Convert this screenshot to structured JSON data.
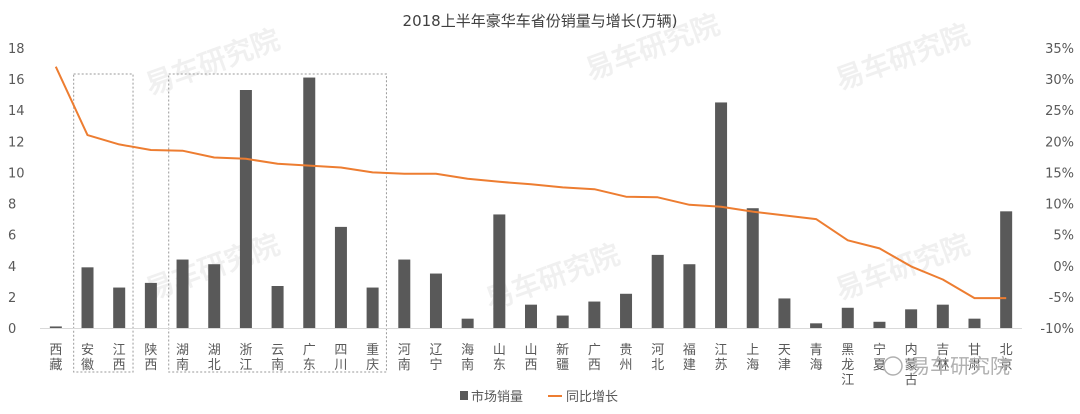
{
  "chart_data": {
    "type": "bar+line",
    "title": "2018上半年豪华车省份销量与增长(万辆)",
    "categories": [
      "西藏",
      "安徽",
      "江西",
      "陕西",
      "湖南",
      "湖北",
      "浙江",
      "云南",
      "广东",
      "四川",
      "重庆",
      "河南",
      "辽宁",
      "海南",
      "山东",
      "山西",
      "新疆",
      "广西",
      "贵州",
      "河北",
      "福建",
      "江苏",
      "上海",
      "天津",
      "青海",
      "黑龙江",
      "宁夏",
      "内蒙古",
      "吉林",
      "甘肃",
      "北京"
    ],
    "series": [
      {
        "name": "市场销量",
        "type": "bar",
        "axis": "left",
        "values": [
          0.1,
          3.9,
          2.6,
          2.9,
          4.4,
          4.1,
          15.3,
          2.7,
          16.1,
          6.5,
          2.6,
          4.4,
          3.5,
          0.6,
          7.3,
          1.5,
          0.8,
          1.7,
          2.2,
          4.7,
          4.1,
          14.5,
          7.7,
          1.9,
          0.3,
          1.3,
          0.4,
          1.2,
          1.5,
          0.6,
          7.5
        ]
      },
      {
        "name": "同比增长",
        "type": "line",
        "axis": "right",
        "values": [
          32.0,
          21.0,
          19.5,
          18.6,
          18.5,
          17.4,
          17.2,
          16.4,
          16.1,
          15.8,
          15.0,
          14.8,
          14.8,
          14.0,
          13.5,
          13.1,
          12.6,
          12.3,
          11.1,
          11.0,
          9.8,
          9.5,
          8.7,
          8.1,
          7.5,
          4.1,
          2.8,
          -0.1,
          -2.2,
          -5.2,
          -5.2
        ]
      }
    ],
    "y_left": {
      "min": 0,
      "max": 18,
      "step": 2,
      "ticks": [
        "0",
        "2",
        "4",
        "6",
        "8",
        "10",
        "12",
        "14",
        "16",
        "18"
      ]
    },
    "y_right": {
      "min": -10,
      "max": 35,
      "step": 5,
      "ticks": [
        "-10%",
        "-5%",
        "0%",
        "5%",
        "10%",
        "15%",
        "20%",
        "25%",
        "30%",
        "35%"
      ]
    },
    "highlight_groups": [
      [
        1,
        2
      ],
      [
        4,
        10
      ]
    ],
    "grid": false,
    "legend_position": "bottom-center",
    "colors": {
      "bar": "#595959",
      "line": "#ED7D31",
      "axis": "#d9d9d9",
      "text": "#595959"
    }
  },
  "watermark": {
    "text": "易车研究院",
    "corner_text": "易车研究院"
  }
}
